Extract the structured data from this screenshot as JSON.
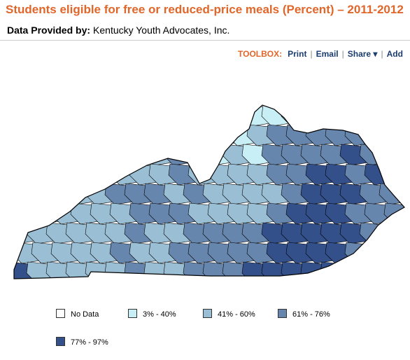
{
  "header": {
    "title": "Students eligible for free or reduced-price meals (Percent) – 2011-2012",
    "provider_label": "Data Provided by:",
    "provider": "Kentucky Youth Advocates, Inc."
  },
  "toolbox": {
    "label": "TOOLBOX:",
    "items": [
      "Print",
      "Email",
      "Share ▾",
      "Add"
    ]
  },
  "legend": {
    "items": [
      {
        "label": "No Data",
        "color": "#ffffff"
      },
      {
        "label": "3% - 40%",
        "color": "#c9eff6"
      },
      {
        "label": "41% - 60%",
        "color": "#9abfd5"
      },
      {
        "label": "61% - 76%",
        "color": "#6786ae"
      },
      {
        "label": "77% - 97%",
        "color": "#33508a"
      }
    ]
  }
}
